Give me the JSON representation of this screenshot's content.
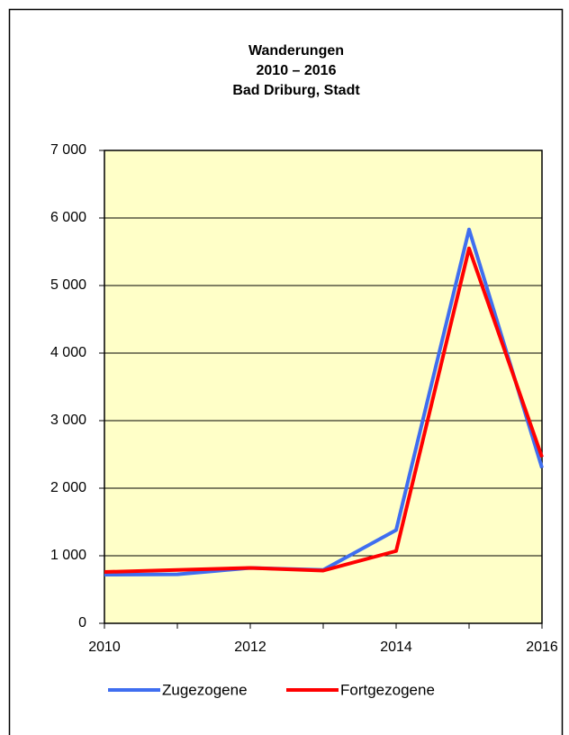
{
  "chart_data": {
    "type": "line",
    "title": [
      "Wanderungen",
      "2010 – 2016",
      "Bad Driburg, Stadt"
    ],
    "x": [
      2010,
      2011,
      2012,
      2013,
      2014,
      2015,
      2016
    ],
    "series": [
      {
        "name": "Zugezogene",
        "color": "#3f6ef0",
        "values": [
          720,
          725,
          820,
          790,
          1380,
          5830,
          2300
        ]
      },
      {
        "name": "Fortgezogene",
        "color": "#ff0000",
        "values": [
          760,
          790,
          820,
          780,
          1070,
          5550,
          2460
        ]
      }
    ],
    "xlim": [
      2010,
      2016
    ],
    "xticks": [
      2010,
      2012,
      2014,
      2016
    ],
    "ylim": [
      0,
      7000
    ],
    "yticks": [
      0,
      {
        "value": 1000,
        "label": "1 000"
      },
      {
        "value": 2000,
        "label": "2 000"
      },
      {
        "value": 3000,
        "label": "3 000"
      },
      {
        "value": 4000,
        "label": "4 000"
      },
      {
        "value": 5000,
        "label": "5 000"
      },
      {
        "value": 6000,
        "label": "6 000"
      },
      {
        "value": 7000,
        "label": "7 000"
      }
    ],
    "grid": true,
    "plot_background": "#ffffc8",
    "legend": "bottom"
  }
}
